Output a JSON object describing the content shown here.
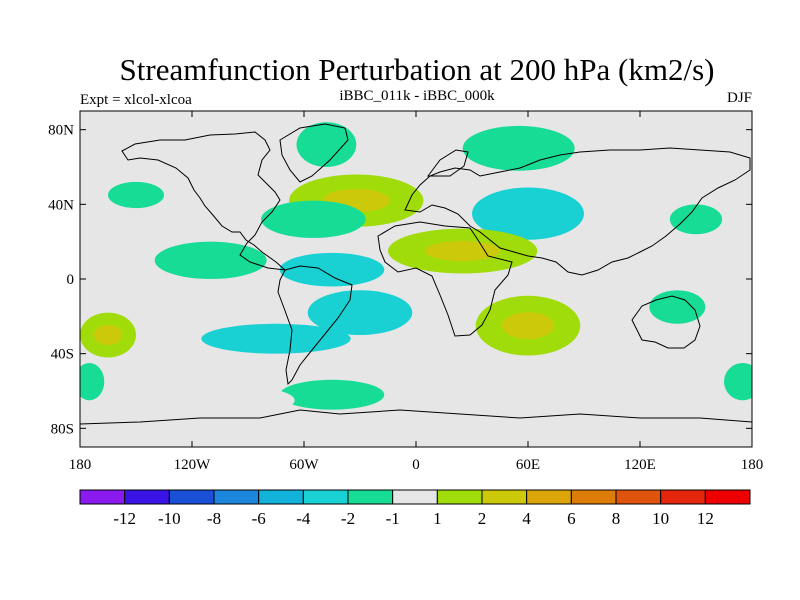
{
  "title": "Streamfunction Perturbation at 200 hPa (km2/s)",
  "left_subtitle": "Expt = xlcol-xlcoa",
  "center_subtitle": "iBBC_011k - iBBC_000k",
  "right_subtitle": "DJF",
  "axes": {
    "x_ticks": [
      {
        "label": "180",
        "lon": -180
      },
      {
        "label": "120W",
        "lon": -120
      },
      {
        "label": "60W",
        "lon": -60
      },
      {
        "label": "0",
        "lon": 0
      },
      {
        "label": "60E",
        "lon": 60
      },
      {
        "label": "120E",
        "lon": 120
      },
      {
        "label": "180",
        "lon": 180
      }
    ],
    "y_ticks": [
      {
        "label": "80N",
        "lat": 80
      },
      {
        "label": "40N",
        "lat": 40
      },
      {
        "label": "0",
        "lat": 0
      },
      {
        "label": "40S",
        "lat": -40
      },
      {
        "label": "80S",
        "lat": -80
      }
    ],
    "lon_range": [
      -180,
      180
    ],
    "lat_range": [
      -90,
      90
    ]
  },
  "colorbar": {
    "colors": [
      "#8a1aee",
      "#3a14e6",
      "#1a4fd8",
      "#1b86dc",
      "#12b2da",
      "#19d1d3",
      "#17dc96",
      "#e6e6e6",
      "#a0dc0a",
      "#ccc90a",
      "#dca60a",
      "#dc7d0a",
      "#e0530c",
      "#e4260c",
      "#ee0000"
    ],
    "labels": [
      "-12",
      "-10",
      "-8",
      "-6",
      "-4",
      "-2",
      "-1",
      "1",
      "2",
      "4",
      "6",
      "8",
      "10",
      "12"
    ]
  },
  "chart_data": {
    "type": "heatmap",
    "title": "Streamfunction Perturbation at 200 hPa (km2/s)",
    "units": "km2/s",
    "levels": [
      -12,
      -10,
      -8,
      -6,
      -4,
      -2,
      -1,
      1,
      2,
      4,
      6,
      8,
      10,
      12
    ],
    "regions": [
      {
        "name": "N Atlantic high",
        "lon": -32,
        "lat": 42,
        "rx": 36,
        "ry": 14,
        "level": 2,
        "core": 4
      },
      {
        "name": "Greenland low",
        "lon": -48,
        "lat": 72,
        "rx": 16,
        "ry": 12,
        "level": -1
      },
      {
        "name": "N Atlantic arc low",
        "lon": -55,
        "lat": 32,
        "rx": 28,
        "ry": 10,
        "level": -1
      },
      {
        "name": "Arctic high",
        "lon": 10,
        "lat": 75,
        "rx": 18,
        "ry": 8,
        "level": 1
      },
      {
        "name": "Eurasia arc low",
        "lon": 55,
        "lat": 70,
        "rx": 30,
        "ry": 12,
        "level": -1
      },
      {
        "name": "Central Asia low",
        "lon": 60,
        "lat": 35,
        "rx": 30,
        "ry": 14,
        "level": -2
      },
      {
        "name": "Siberia high",
        "lon": 110,
        "lat": 48,
        "rx": 20,
        "ry": 10,
        "level": 1
      },
      {
        "name": "N Pacific low",
        "lon": 150,
        "lat": 32,
        "rx": 14,
        "ry": 8,
        "level": -1
      },
      {
        "name": "Alaska low",
        "lon": -150,
        "lat": 45,
        "rx": 15,
        "ry": 7,
        "level": -1
      },
      {
        "name": "NE Pacific high",
        "lon": -160,
        "lat": 25,
        "rx": 12,
        "ry": 6,
        "level": 1
      },
      {
        "name": "N Africa high",
        "lon": 25,
        "lat": 15,
        "rx": 40,
        "ry": 12,
        "level": 2,
        "core": 4
      },
      {
        "name": "Caribbean low",
        "lon": -110,
        "lat": 10,
        "rx": 30,
        "ry": 10,
        "level": -1
      },
      {
        "name": "Eq America low",
        "lon": -45,
        "lat": 5,
        "rx": 28,
        "ry": 9,
        "level": -2
      },
      {
        "name": "S Atlantic low",
        "lon": -30,
        "lat": -18,
        "rx": 28,
        "ry": 12,
        "level": -2
      },
      {
        "name": "SW Indian Ocean high",
        "lon": 60,
        "lat": -25,
        "rx": 28,
        "ry": 16,
        "level": 2,
        "core": 4
      },
      {
        "name": "E Pacific high",
        "lon": -100,
        "lat": -15,
        "rx": 35,
        "ry": 6,
        "level": 1
      },
      {
        "name": "SE Pacific low",
        "lon": -75,
        "lat": -32,
        "rx": 40,
        "ry": 8,
        "level": -2
      },
      {
        "name": "Australia low",
        "lon": 140,
        "lat": -15,
        "rx": 15,
        "ry": 9,
        "level": -1
      },
      {
        "name": "SE Indian Ocean high",
        "lon": 135,
        "lat": -35,
        "rx": 25,
        "ry": 10,
        "level": 1
      },
      {
        "name": "SW Pacific high",
        "lon": -165,
        "lat": -30,
        "rx": 15,
        "ry": 12,
        "level": 2,
        "core": 4
      },
      {
        "name": "S Ocean low",
        "lon": -45,
        "lat": -62,
        "rx": 28,
        "ry": 8,
        "level": -1
      },
      {
        "name": "Drake high",
        "lon": -90,
        "lat": -65,
        "rx": 25,
        "ry": 7,
        "level": 1
      },
      {
        "name": "Dateline low W",
        "lon": -175,
        "lat": -55,
        "rx": 8,
        "ry": 10,
        "level": -1
      },
      {
        "name": "Dateline low E",
        "lon": 175,
        "lat": -55,
        "rx": 10,
        "ry": 10,
        "level": -1
      }
    ]
  }
}
